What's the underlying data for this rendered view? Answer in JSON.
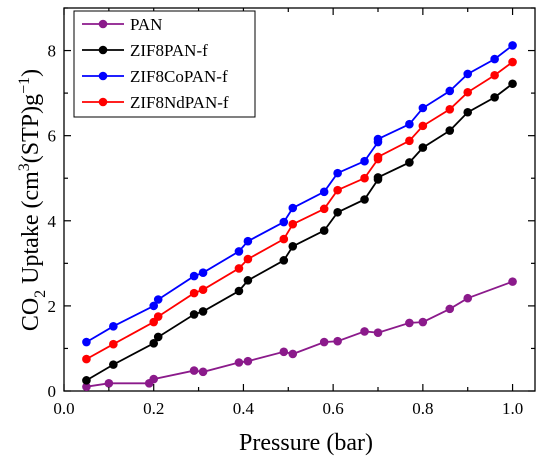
{
  "chart_data": {
    "type": "line",
    "xlabel": "Pressure (bar)",
    "ylabel_parts": {
      "base": "CO",
      "sub": "2",
      "mid": " Uptake (cm",
      "sup": "3",
      "rest": "(STP)g",
      "sup2": "−1",
      "end": ")"
    },
    "xlim": [
      0.0,
      1.05
    ],
    "ylim": [
      0,
      9
    ],
    "xticks": [
      0.0,
      0.2,
      0.4,
      0.6,
      0.8,
      1.0
    ],
    "xtick_labels": [
      "0.0",
      "0.2",
      "0.4",
      "0.6",
      "0.8",
      "1.0"
    ],
    "yticks": [
      0,
      2,
      4,
      6,
      8
    ],
    "ytick_labels": [
      "0",
      "2",
      "4",
      "6",
      "8"
    ],
    "grid": false,
    "legend_position": "top-left",
    "series": [
      {
        "name": "PAN",
        "color": "#8B1A8B",
        "x": [
          0.05,
          0.1,
          0.19,
          0.2,
          0.29,
          0.31,
          0.39,
          0.41,
          0.49,
          0.51,
          0.58,
          0.61,
          0.67,
          0.7,
          0.77,
          0.8,
          0.86,
          0.9,
          1.0
        ],
        "y": [
          0.1,
          0.18,
          0.18,
          0.28,
          0.48,
          0.45,
          0.67,
          0.7,
          0.92,
          0.87,
          1.15,
          1.17,
          1.4,
          1.37,
          1.6,
          1.62,
          1.93,
          2.18,
          2.57
        ]
      },
      {
        "name": "ZIF8PAN-f",
        "color": "#000000",
        "x": [
          0.05,
          0.11,
          0.2,
          0.21,
          0.29,
          0.31,
          0.39,
          0.41,
          0.49,
          0.51,
          0.58,
          0.61,
          0.67,
          0.7,
          0.7,
          0.77,
          0.8,
          0.86,
          0.9,
          0.96,
          1.0
        ],
        "y": [
          0.25,
          0.62,
          1.12,
          1.27,
          1.8,
          1.87,
          2.35,
          2.6,
          3.07,
          3.4,
          3.77,
          4.2,
          4.5,
          4.97,
          5.02,
          5.37,
          5.72,
          6.12,
          6.55,
          6.9,
          7.22
        ]
      },
      {
        "name": "ZIF8CoPAN-f",
        "color": "#0000FF",
        "x": [
          0.05,
          0.11,
          0.2,
          0.21,
          0.29,
          0.31,
          0.39,
          0.41,
          0.49,
          0.51,
          0.58,
          0.61,
          0.67,
          0.7,
          0.7,
          0.77,
          0.8,
          0.86,
          0.9,
          0.96,
          1.0
        ],
        "y": [
          1.15,
          1.52,
          2.0,
          2.15,
          2.7,
          2.78,
          3.28,
          3.52,
          3.97,
          4.3,
          4.68,
          5.12,
          5.4,
          5.85,
          5.92,
          6.27,
          6.65,
          7.05,
          7.45,
          7.8,
          8.12
        ]
      },
      {
        "name": "ZIF8NdPAN-f",
        "color": "#FF0000",
        "x": [
          0.05,
          0.11,
          0.2,
          0.21,
          0.29,
          0.31,
          0.39,
          0.41,
          0.49,
          0.51,
          0.58,
          0.61,
          0.67,
          0.7,
          0.7,
          0.77,
          0.8,
          0.86,
          0.9,
          0.96,
          1.0
        ],
        "y": [
          0.75,
          1.1,
          1.62,
          1.75,
          2.3,
          2.38,
          2.88,
          3.1,
          3.57,
          3.92,
          4.28,
          4.72,
          5.0,
          5.45,
          5.5,
          5.88,
          6.23,
          6.62,
          7.02,
          7.42,
          7.73
        ]
      }
    ]
  }
}
